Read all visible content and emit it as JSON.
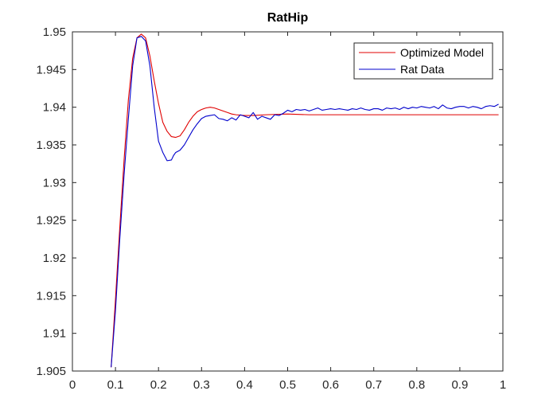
{
  "chart_data": {
    "type": "line",
    "title": "RatHip",
    "xlabel": "",
    "ylabel": "",
    "xlim": [
      0,
      1
    ],
    "ylim": [
      1.905,
      1.95
    ],
    "x_ticks": [
      "0",
      "0.1",
      "0.2",
      "0.3",
      "0.4",
      "0.5",
      "0.6",
      "0.7",
      "0.8",
      "0.9",
      "1"
    ],
    "y_ticks": [
      "1.905",
      "1.91",
      "1.915",
      "1.92",
      "1.925",
      "1.93",
      "1.935",
      "1.94",
      "1.945",
      "1.95"
    ],
    "legend_position": "top-right",
    "grid": false,
    "series": [
      {
        "name": "Optimized Model",
        "color": "#e00000",
        "x": [
          0.09,
          0.1,
          0.11,
          0.12,
          0.13,
          0.14,
          0.15,
          0.16,
          0.17,
          0.18,
          0.19,
          0.2,
          0.21,
          0.22,
          0.23,
          0.24,
          0.25,
          0.26,
          0.27,
          0.28,
          0.29,
          0.3,
          0.31,
          0.32,
          0.33,
          0.34,
          0.35,
          0.36,
          0.37,
          0.38,
          0.4,
          0.42,
          0.45,
          0.5,
          0.55,
          0.6,
          0.7,
          0.8,
          0.9,
          0.99
        ],
        "y": [
          1.9055,
          1.9145,
          1.924,
          1.933,
          1.941,
          1.9465,
          1.9492,
          1.9497,
          1.9492,
          1.9468,
          1.9435,
          1.9405,
          1.938,
          1.9368,
          1.9361,
          1.936,
          1.9362,
          1.937,
          1.938,
          1.9388,
          1.9394,
          1.9397,
          1.9399,
          1.94,
          1.9399,
          1.9397,
          1.9395,
          1.9393,
          1.9391,
          1.939,
          1.9389,
          1.9389,
          1.939,
          1.9391,
          1.939,
          1.939,
          1.939,
          1.939,
          1.939,
          1.939
        ]
      },
      {
        "name": "Rat Data",
        "color": "#0000cc",
        "x": [
          0.09,
          0.1,
          0.11,
          0.12,
          0.13,
          0.14,
          0.15,
          0.16,
          0.17,
          0.18,
          0.19,
          0.2,
          0.21,
          0.22,
          0.23,
          0.235,
          0.24,
          0.25,
          0.26,
          0.27,
          0.28,
          0.29,
          0.3,
          0.31,
          0.32,
          0.33,
          0.34,
          0.35,
          0.36,
          0.37,
          0.38,
          0.39,
          0.4,
          0.41,
          0.42,
          0.43,
          0.44,
          0.45,
          0.46,
          0.47,
          0.48,
          0.49,
          0.5,
          0.51,
          0.52,
          0.53,
          0.54,
          0.55,
          0.56,
          0.57,
          0.58,
          0.59,
          0.6,
          0.61,
          0.62,
          0.63,
          0.64,
          0.65,
          0.66,
          0.67,
          0.68,
          0.69,
          0.7,
          0.71,
          0.72,
          0.73,
          0.74,
          0.75,
          0.76,
          0.77,
          0.78,
          0.79,
          0.8,
          0.81,
          0.82,
          0.83,
          0.84,
          0.85,
          0.86,
          0.87,
          0.88,
          0.89,
          0.9,
          0.91,
          0.92,
          0.93,
          0.94,
          0.95,
          0.96,
          0.97,
          0.98,
          0.99
        ],
        "y": [
          1.9055,
          1.913,
          1.9225,
          1.931,
          1.9385,
          1.9455,
          1.9492,
          1.9494,
          1.9488,
          1.9455,
          1.94,
          1.9355,
          1.934,
          1.9329,
          1.933,
          1.9336,
          1.934,
          1.9343,
          1.935,
          1.936,
          1.937,
          1.9378,
          1.9385,
          1.9388,
          1.9389,
          1.939,
          1.9385,
          1.9384,
          1.9382,
          1.9386,
          1.9383,
          1.939,
          1.9388,
          1.9386,
          1.9393,
          1.9384,
          1.9388,
          1.9386,
          1.9384,
          1.939,
          1.9389,
          1.9392,
          1.9396,
          1.9394,
          1.9397,
          1.9396,
          1.9397,
          1.9395,
          1.9397,
          1.9399,
          1.9396,
          1.9397,
          1.9398,
          1.9397,
          1.9398,
          1.9397,
          1.9396,
          1.9398,
          1.9397,
          1.9399,
          1.9397,
          1.9396,
          1.9398,
          1.9398,
          1.9396,
          1.9399,
          1.9398,
          1.9399,
          1.9397,
          1.94,
          1.9398,
          1.94,
          1.9399,
          1.9401,
          1.94,
          1.9399,
          1.9401,
          1.9398,
          1.9403,
          1.9399,
          1.9398,
          1.94,
          1.9401,
          1.9401,
          1.9399,
          1.9401,
          1.94,
          1.9398,
          1.9401,
          1.9402,
          1.9401,
          1.9404
        ]
      }
    ]
  }
}
